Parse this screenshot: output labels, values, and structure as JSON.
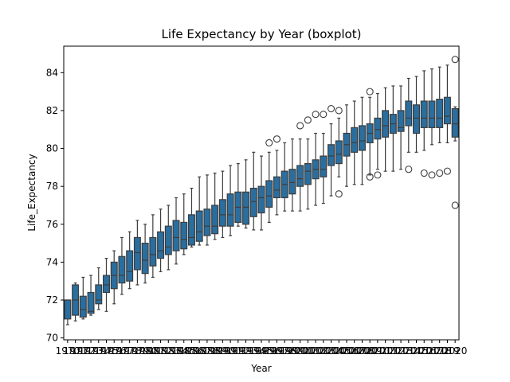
{
  "chart_data": {
    "type": "boxplot",
    "title": "Life Expectancy by Year (boxplot)",
    "xlabel": "Year",
    "ylabel": "Life_Expectancy",
    "ylim": [
      69.9,
      85.4
    ],
    "yticks": [
      70,
      72,
      74,
      76,
      78,
      80,
      82,
      84
    ],
    "color": "#2a6e9f",
    "categories": [
      "1970",
      "1971",
      "1972",
      "1973",
      "1974",
      "1975",
      "1976",
      "1977",
      "1978",
      "1979",
      "1980",
      "1981",
      "1982",
      "1983",
      "1984",
      "1985",
      "1986",
      "1987",
      "1988",
      "1989",
      "1990",
      "1991",
      "1992",
      "1993",
      "1994",
      "1995",
      "1996",
      "1997",
      "1998",
      "1999",
      "2000",
      "2001",
      "2002",
      "2003",
      "2004",
      "2005",
      "2006",
      "2007",
      "2008",
      "2009",
      "2010",
      "2011",
      "2012",
      "2013",
      "2014",
      "2015",
      "2016",
      "2017",
      "2018",
      "2019",
      "2020"
    ],
    "boxes": [
      {
        "year": "1970",
        "whisker_low": 70.7,
        "q1": 71.0,
        "median": 72.0,
        "q3": 72.0,
        "whisker_high": 72.0,
        "outliers": []
      },
      {
        "year": "1971",
        "whisker_low": 70.9,
        "q1": 71.2,
        "median": 72.0,
        "q3": 72.8,
        "whisker_high": 72.9,
        "outliers": []
      },
      {
        "year": "1972",
        "whisker_low": 71.0,
        "q1": 71.1,
        "median": 71.5,
        "q3": 72.2,
        "whisker_high": 73.2,
        "outliers": []
      },
      {
        "year": "1973",
        "whisker_low": 71.2,
        "q1": 71.3,
        "median": 71.4,
        "q3": 72.4,
        "whisker_high": 73.3,
        "outliers": []
      },
      {
        "year": "1974",
        "whisker_low": 71.5,
        "q1": 71.8,
        "median": 72.0,
        "q3": 72.8,
        "whisker_high": 73.7,
        "outliers": []
      },
      {
        "year": "1975",
        "whisker_low": 71.4,
        "q1": 72.4,
        "median": 72.8,
        "q3": 73.3,
        "whisker_high": 74.2,
        "outliers": []
      },
      {
        "year": "1976",
        "whisker_low": 71.8,
        "q1": 72.6,
        "median": 73.3,
        "q3": 74.0,
        "whisker_high": 74.6,
        "outliers": []
      },
      {
        "year": "1977",
        "whisker_low": 72.3,
        "q1": 72.9,
        "median": 73.3,
        "q3": 74.3,
        "whisker_high": 75.3,
        "outliers": []
      },
      {
        "year": "1978",
        "whisker_low": 72.6,
        "q1": 73.0,
        "median": 73.5,
        "q3": 74.6,
        "whisker_high": 75.6,
        "outliers": []
      },
      {
        "year": "1979",
        "whisker_low": 72.8,
        "q1": 73.6,
        "median": 74.5,
        "q3": 75.3,
        "whisker_high": 76.2,
        "outliers": []
      },
      {
        "year": "1980",
        "whisker_low": 72.9,
        "q1": 73.4,
        "median": 74.1,
        "q3": 75.0,
        "whisker_high": 76.0,
        "outliers": []
      },
      {
        "year": "1981",
        "whisker_low": 73.2,
        "q1": 73.8,
        "median": 74.4,
        "q3": 75.3,
        "whisker_high": 76.5,
        "outliers": []
      },
      {
        "year": "1982",
        "whisker_low": 73.5,
        "q1": 74.2,
        "median": 74.6,
        "q3": 75.6,
        "whisker_high": 76.8,
        "outliers": []
      },
      {
        "year": "1983",
        "whisker_low": 73.6,
        "q1": 74.4,
        "median": 74.8,
        "q3": 75.9,
        "whisker_high": 77.0,
        "outliers": []
      },
      {
        "year": "1984",
        "whisker_low": 73.9,
        "q1": 74.6,
        "median": 75.3,
        "q3": 76.2,
        "whisker_high": 77.4,
        "outliers": []
      },
      {
        "year": "1985",
        "whisker_low": 74.4,
        "q1": 74.7,
        "median": 75.2,
        "q3": 76.1,
        "whisker_high": 77.6,
        "outliers": []
      },
      {
        "year": "1986",
        "whisker_low": 74.8,
        "q1": 74.9,
        "median": 75.3,
        "q3": 76.5,
        "whisker_high": 77.9,
        "outliers": []
      },
      {
        "year": "1987",
        "whisker_low": 74.9,
        "q1": 75.1,
        "median": 75.6,
        "q3": 76.7,
        "whisker_high": 78.5,
        "outliers": []
      },
      {
        "year": "1988",
        "whisker_low": 74.9,
        "q1": 75.4,
        "median": 75.9,
        "q3": 76.8,
        "whisker_high": 78.6,
        "outliers": []
      },
      {
        "year": "1989",
        "whisker_low": 75.2,
        "q1": 75.5,
        "median": 75.9,
        "q3": 77.0,
        "whisker_high": 78.7,
        "outliers": []
      },
      {
        "year": "1990",
        "whisker_low": 75.3,
        "q1": 75.9,
        "median": 76.5,
        "q3": 77.3,
        "whisker_high": 78.8,
        "outliers": []
      },
      {
        "year": "1991",
        "whisker_low": 75.4,
        "q1": 75.9,
        "median": 76.5,
        "q3": 77.6,
        "whisker_high": 79.1,
        "outliers": []
      },
      {
        "year": "1992",
        "whisker_low": 75.9,
        "q1": 76.1,
        "median": 76.9,
        "q3": 77.7,
        "whisker_high": 79.2,
        "outliers": []
      },
      {
        "year": "1993",
        "whisker_low": 75.8,
        "q1": 76.0,
        "median": 76.9,
        "q3": 77.7,
        "whisker_high": 79.4,
        "outliers": []
      },
      {
        "year": "1994",
        "whisker_low": 75.7,
        "q1": 76.4,
        "median": 77.2,
        "q3": 77.9,
        "whisker_high": 79.8,
        "outliers": []
      },
      {
        "year": "1995",
        "whisker_low": 75.7,
        "q1": 76.6,
        "median": 77.4,
        "q3": 78.0,
        "whisker_high": 79.6,
        "outliers": []
      },
      {
        "year": "1996",
        "whisker_low": 76.1,
        "q1": 76.9,
        "median": 77.5,
        "q3": 78.3,
        "whisker_high": 79.8,
        "outliers": [
          80.3
        ]
      },
      {
        "year": "1997",
        "whisker_low": 76.5,
        "q1": 77.4,
        "median": 77.8,
        "q3": 78.5,
        "whisker_high": 79.9,
        "outliers": [
          80.5
        ]
      },
      {
        "year": "1998",
        "whisker_low": 76.7,
        "q1": 77.4,
        "median": 78.1,
        "q3": 78.8,
        "whisker_high": 80.3,
        "outliers": []
      },
      {
        "year": "1999",
        "whisker_low": 76.7,
        "q1": 77.6,
        "median": 78.2,
        "q3": 78.9,
        "whisker_high": 80.5,
        "outliers": []
      },
      {
        "year": "2000",
        "whisker_low": 76.7,
        "q1": 78.0,
        "median": 78.4,
        "q3": 79.1,
        "whisker_high": 80.5,
        "outliers": [
          81.2
        ]
      },
      {
        "year": "2001",
        "whisker_low": 76.8,
        "q1": 78.1,
        "median": 78.8,
        "q3": 79.2,
        "whisker_high": 80.5,
        "outliers": [
          81.5
        ]
      },
      {
        "year": "2002",
        "whisker_low": 77.0,
        "q1": 78.4,
        "median": 78.9,
        "q3": 79.4,
        "whisker_high": 80.8,
        "outliers": [
          81.8
        ]
      },
      {
        "year": "2003",
        "whisker_low": 77.1,
        "q1": 78.5,
        "median": 78.9,
        "q3": 79.6,
        "whisker_high": 80.8,
        "outliers": [
          81.8
        ]
      },
      {
        "year": "2004",
        "whisker_low": 77.5,
        "q1": 79.1,
        "median": 79.6,
        "q3": 80.2,
        "whisker_high": 81.3,
        "outliers": [
          82.1
        ]
      },
      {
        "year": "2005",
        "whisker_low": 78.5,
        "q1": 79.2,
        "median": 79.7,
        "q3": 80.4,
        "whisker_high": 81.6,
        "outliers": [
          77.6,
          82.0
        ]
      },
      {
        "year": "2006",
        "whisker_low": 78.0,
        "q1": 79.6,
        "median": 80.2,
        "q3": 80.8,
        "whisker_high": 82.3,
        "outliers": []
      },
      {
        "year": "2007",
        "whisker_low": 78.1,
        "q1": 79.8,
        "median": 80.3,
        "q3": 81.1,
        "whisker_high": 82.5,
        "outliers": []
      },
      {
        "year": "2008",
        "whisker_low": 78.1,
        "q1": 79.9,
        "median": 80.4,
        "q3": 81.2,
        "whisker_high": 82.7,
        "outliers": []
      },
      {
        "year": "2009",
        "whisker_low": 78.6,
        "q1": 80.3,
        "median": 80.8,
        "q3": 81.3,
        "whisker_high": 82.7,
        "outliers": [
          78.5,
          83.0
        ]
      },
      {
        "year": "2010",
        "whisker_low": 78.9,
        "q1": 80.5,
        "median": 81.0,
        "q3": 81.6,
        "whisker_high": 82.9,
        "outliers": [
          78.6
        ]
      },
      {
        "year": "2011",
        "whisker_low": 78.8,
        "q1": 80.6,
        "median": 81.2,
        "q3": 82.0,
        "whisker_high": 83.2,
        "outliers": []
      },
      {
        "year": "2012",
        "whisker_low": 78.8,
        "q1": 80.8,
        "median": 81.3,
        "q3": 81.8,
        "whisker_high": 83.3,
        "outliers": []
      },
      {
        "year": "2013",
        "whisker_low": 78.9,
        "q1": 80.9,
        "median": 81.1,
        "q3": 82.0,
        "whisker_high": 83.3,
        "outliers": []
      },
      {
        "year": "2014",
        "whisker_low": 79.8,
        "q1": 81.2,
        "median": 81.6,
        "q3": 82.5,
        "whisker_high": 83.7,
        "outliers": [
          78.9
        ]
      },
      {
        "year": "2015",
        "whisker_low": 79.8,
        "q1": 80.8,
        "median": 81.6,
        "q3": 82.3,
        "whisker_high": 83.8,
        "outliers": []
      },
      {
        "year": "2016",
        "whisker_low": 79.9,
        "q1": 81.1,
        "median": 81.6,
        "q3": 82.5,
        "whisker_high": 84.1,
        "outliers": [
          78.7
        ]
      },
      {
        "year": "2017",
        "whisker_low": 80.2,
        "q1": 81.1,
        "median": 81.6,
        "q3": 82.5,
        "whisker_high": 84.2,
        "outliers": [
          78.6
        ]
      },
      {
        "year": "2018",
        "whisker_low": 80.3,
        "q1": 81.1,
        "median": 81.6,
        "q3": 82.6,
        "whisker_high": 84.3,
        "outliers": [
          78.7
        ]
      },
      {
        "year": "2019",
        "whisker_low": 80.3,
        "q1": 81.3,
        "median": 81.7,
        "q3": 82.7,
        "whisker_high": 84.4,
        "outliers": [
          78.8
        ]
      },
      {
        "year": "2020",
        "whisker_low": 80.4,
        "q1": 80.6,
        "median": 81.3,
        "q3": 82.1,
        "whisker_high": 82.2,
        "outliers": [
          77.0,
          84.7
        ]
      }
    ]
  }
}
